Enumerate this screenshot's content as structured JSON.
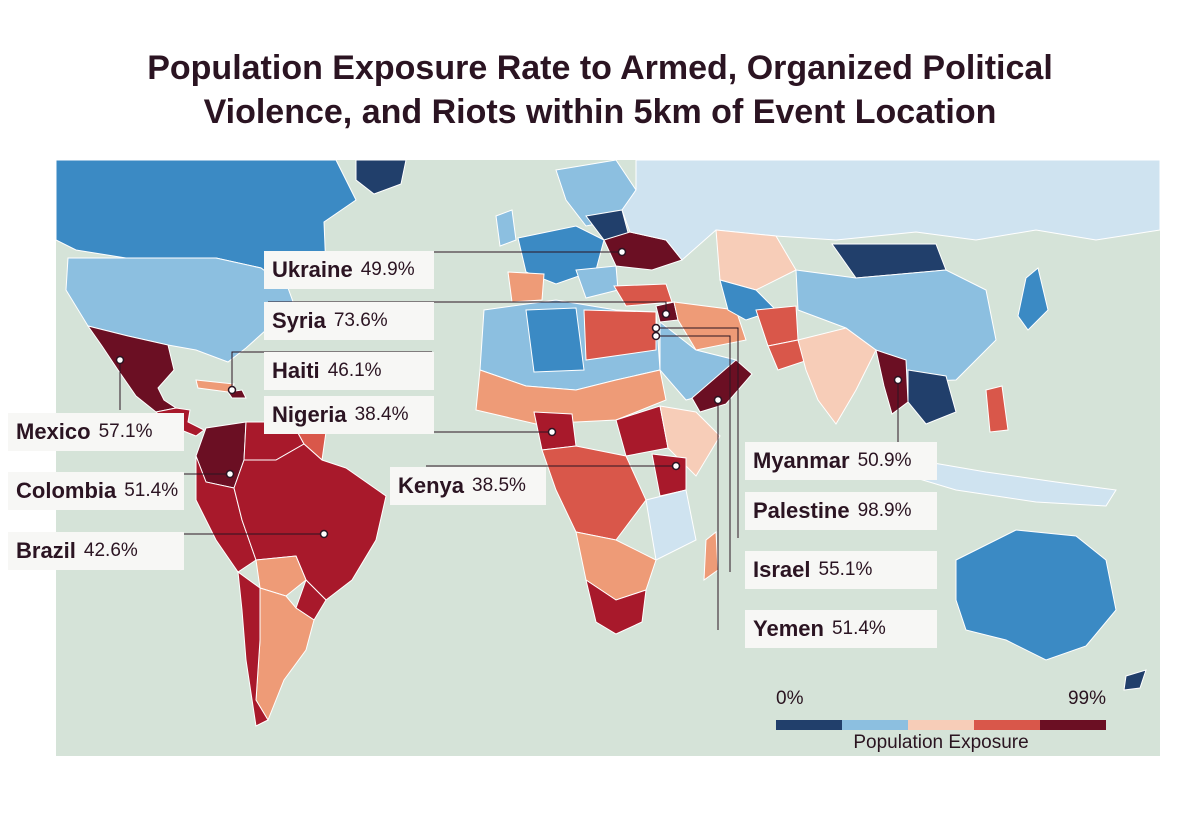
{
  "title_line1": "Population Exposure Rate to Armed, Organized Political",
  "title_line2": "Violence, and Riots within 5km of Event Location",
  "colors": {
    "ocean": "#d5e3d8",
    "scale": [
      "#213f6b",
      "#8cbfe0",
      "#f7cdb8",
      "#d9574a",
      "#6b0f23"
    ],
    "mid_blue": "#3b8ac4",
    "light_blue": "#cfe3f0",
    "deep_red": "#a8192b",
    "orange": "#ee9b77",
    "border_gray": "#a9a9a9"
  },
  "callouts": [
    {
      "id": "ukraine",
      "name": "Ukraine",
      "value": "49.9%"
    },
    {
      "id": "syria",
      "name": "Syria",
      "value": "73.6%"
    },
    {
      "id": "haiti",
      "name": "Haiti",
      "value": "46.1%"
    },
    {
      "id": "nigeria",
      "name": "Nigeria",
      "value": "38.4%"
    },
    {
      "id": "mexico",
      "name": "Mexico",
      "value": "57.1%"
    },
    {
      "id": "colombia",
      "name": "Colombia",
      "value": "51.4%"
    },
    {
      "id": "brazil",
      "name": "Brazil",
      "value": "42.6%"
    },
    {
      "id": "kenya",
      "name": "Kenya",
      "value": "38.5%"
    },
    {
      "id": "myanmar",
      "name": "Myanmar",
      "value": "50.9%"
    },
    {
      "id": "palestine",
      "name": "Palestine",
      "value": "98.9%"
    },
    {
      "id": "israel",
      "name": "Israel",
      "value": "55.1%"
    },
    {
      "id": "yemen",
      "name": "Yemen",
      "value": "51.4%"
    }
  ],
  "legend": {
    "min_label": "0%",
    "max_label": "99%",
    "title": "Population Exposure"
  }
}
